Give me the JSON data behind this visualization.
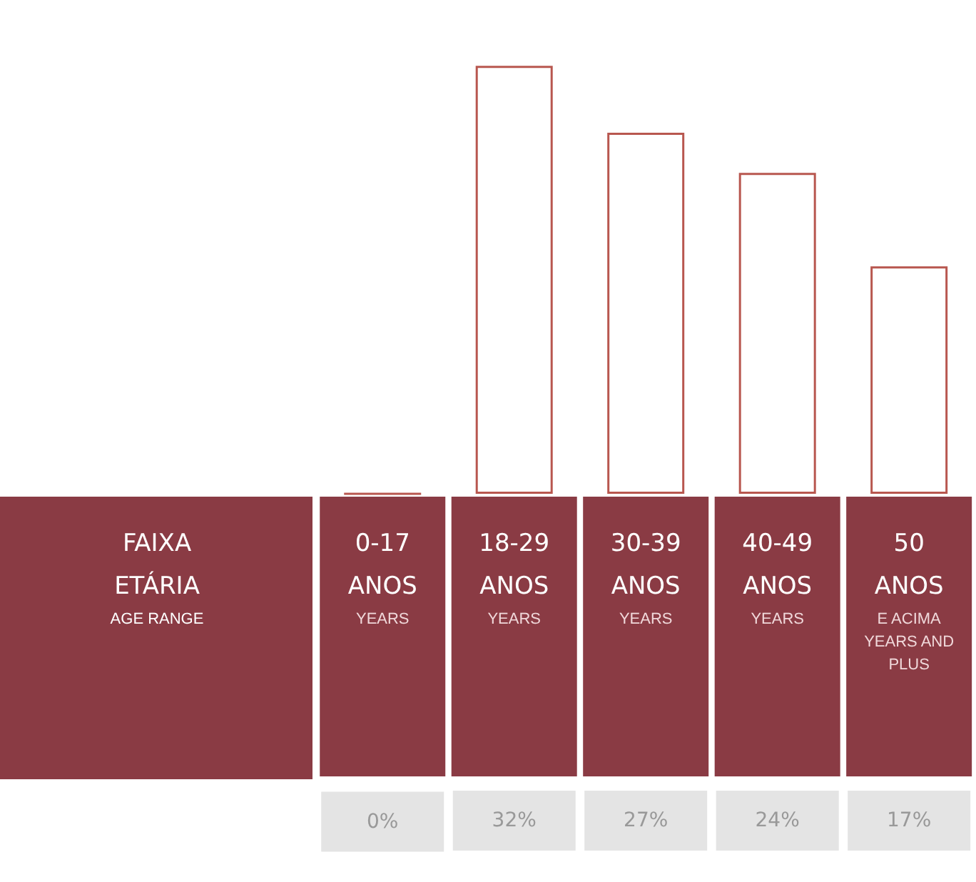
{
  "chart_data": {
    "type": "bar",
    "xlabel": "FAIXA\nETÁRIA\nAGE RANGE",
    "categories": [
      "0-17\nANOS\nYEARS",
      "18-29\nANOS\nYEARS",
      "30-39\nANOS\nYEARS",
      "40-49\nANOS\nYEARS",
      "50\nANOS\nE ACIMA\nYEARS AND\nPLUS"
    ],
    "values": [
      0,
      32,
      27,
      24,
      17
    ],
    "value_labels": [
      "0%",
      "32%",
      "27%",
      "24%",
      "17%"
    ],
    "color": "#b8574f"
  }
}
